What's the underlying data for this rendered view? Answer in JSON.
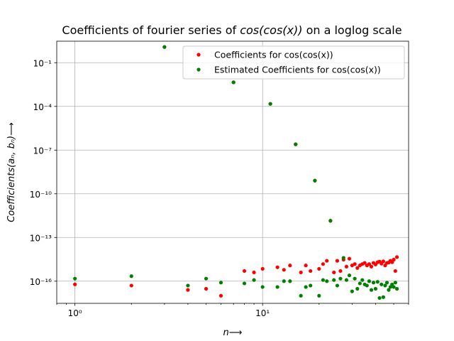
{
  "chart_data": {
    "type": "scatter",
    "title": "Coefficients of fourier series of cos(cos(x)) on a loglog scale",
    "title_prefix": "Coefficients of fourier series of ",
    "title_math": "cos(cos(x))",
    "title_suffix": " on a loglog scale",
    "xlabel": "n⟶",
    "ylabel": "Coefficients(aₙ, bₙ)⟶",
    "x_scale": "log",
    "y_scale": "log",
    "xlim": [
      0.8,
      60
    ],
    "ylim": [
      3e-18,
      3
    ],
    "x_ticks": [
      {
        "value": 1,
        "label": "10⁰"
      },
      {
        "value": 10,
        "label": "10¹"
      }
    ],
    "y_ticks": [
      {
        "value": 1e-16,
        "label": "10⁻¹⁶"
      },
      {
        "value": 1e-13,
        "label": "10⁻¹³"
      },
      {
        "value": 1e-10,
        "label": "10⁻¹⁰"
      },
      {
        "value": 1e-07,
        "label": "10⁻⁷"
      },
      {
        "value": 0.0001,
        "label": "10⁻⁴"
      },
      {
        "value": 0.1,
        "label": "10⁻¹"
      }
    ],
    "grid": true,
    "legend_position": "top-right",
    "series": [
      {
        "name": "Coefficients for cos(cos(x))",
        "color": "#ff0000",
        "marker": "dot",
        "points": [
          [
            1,
            6e-17
          ],
          [
            2,
            5e-17
          ],
          [
            3,
            1.2
          ],
          [
            4,
            2.5e-17
          ],
          [
            5,
            3e-17
          ],
          [
            6,
            1e-17
          ],
          [
            7,
            0.0045
          ],
          [
            8,
            5e-16
          ],
          [
            9,
            4e-16
          ],
          [
            10,
            7e-16
          ],
          [
            11,
            0.00015
          ],
          [
            12,
            9e-16
          ],
          [
            13,
            6e-16
          ],
          [
            14,
            1.2e-15
          ],
          [
            15,
            2.5e-07
          ],
          [
            16,
            4e-16
          ],
          [
            17,
            1.2e-15
          ],
          [
            18,
            5e-16
          ],
          [
            19,
            8e-10
          ],
          [
            20,
            7e-16
          ],
          [
            21,
            1.5e-15
          ],
          [
            22,
            2.5e-15
          ],
          [
            23,
            1.4e-12
          ],
          [
            24,
            4e-16
          ],
          [
            25,
            2.5e-15
          ],
          [
            26,
            5e-16
          ],
          [
            27,
            3e-15
          ],
          [
            28,
            1e-15
          ],
          [
            29,
            3.5e-15
          ],
          [
            30,
            1.2e-15
          ],
          [
            31,
            1.5e-15
          ],
          [
            32,
            8e-16
          ],
          [
            33,
            1.2e-15
          ],
          [
            34,
            1.5e-15
          ],
          [
            35,
            1.8e-15
          ],
          [
            36,
            1.2e-15
          ],
          [
            37,
            1.5e-15
          ],
          [
            38,
            1e-15
          ],
          [
            39,
            1.8e-15
          ],
          [
            40,
            1.4e-15
          ],
          [
            41,
            2e-15
          ],
          [
            42,
            2.2e-15
          ],
          [
            43,
            1.6e-15
          ],
          [
            44,
            2.3e-15
          ],
          [
            45,
            1.2e-15
          ],
          [
            46,
            1.8e-15
          ],
          [
            47,
            1.9e-15
          ],
          [
            48,
            2.5e-15
          ],
          [
            49,
            2e-15
          ],
          [
            50,
            3e-15
          ],
          [
            51,
            5e-16
          ],
          [
            52,
            4.5e-15
          ]
        ]
      },
      {
        "name": "Estimated Coefficients for cos(cos(x))",
        "color": "#008000",
        "marker": "dot",
        "points": [
          [
            1,
            1.5e-16
          ],
          [
            2,
            2.2e-16
          ],
          [
            3,
            1.2
          ],
          [
            4,
            5e-17
          ],
          [
            5,
            1.5e-16
          ],
          [
            6,
            8e-17
          ],
          [
            7,
            0.0045
          ],
          [
            8,
            7e-17
          ],
          [
            9,
            1.2e-16
          ],
          [
            10,
            4e-17
          ],
          [
            11,
            0.00015
          ],
          [
            12,
            4e-17
          ],
          [
            13,
            1e-16
          ],
          [
            14,
            1e-16
          ],
          [
            15,
            2.5e-07
          ],
          [
            16,
            1e-17
          ],
          [
            17,
            4e-17
          ],
          [
            18,
            5e-17
          ],
          [
            19,
            8e-10
          ],
          [
            20,
            1e-17
          ],
          [
            21,
            1.2e-16
          ],
          [
            22,
            1e-16
          ],
          [
            23,
            1.4e-12
          ],
          [
            24,
            1.2e-16
          ],
          [
            25,
            5e-17
          ],
          [
            26,
            1.5e-16
          ],
          [
            27,
            4e-15
          ],
          [
            28,
            1.2e-16
          ],
          [
            29,
            2.5e-16
          ],
          [
            30,
            2e-17
          ],
          [
            31,
            1.5e-16
          ],
          [
            32,
            3e-17
          ],
          [
            33,
            7e-17
          ],
          [
            34,
            1.2e-16
          ],
          [
            35,
            6e-17
          ],
          [
            36,
            5e-17
          ],
          [
            37,
            1e-16
          ],
          [
            38,
            2.5e-17
          ],
          [
            39,
            8e-17
          ],
          [
            40,
            3e-17
          ],
          [
            41,
            9e-17
          ],
          [
            42,
            7e-18
          ],
          [
            43,
            6e-17
          ],
          [
            44,
            8e-18
          ],
          [
            45,
            5e-17
          ],
          [
            46,
            8e-17
          ],
          [
            47,
            2.5e-17
          ],
          [
            48,
            4e-17
          ],
          [
            49,
            6e-17
          ],
          [
            50,
            4e-17
          ],
          [
            51,
            8e-17
          ],
          [
            52,
            3e-17
          ]
        ]
      }
    ]
  }
}
